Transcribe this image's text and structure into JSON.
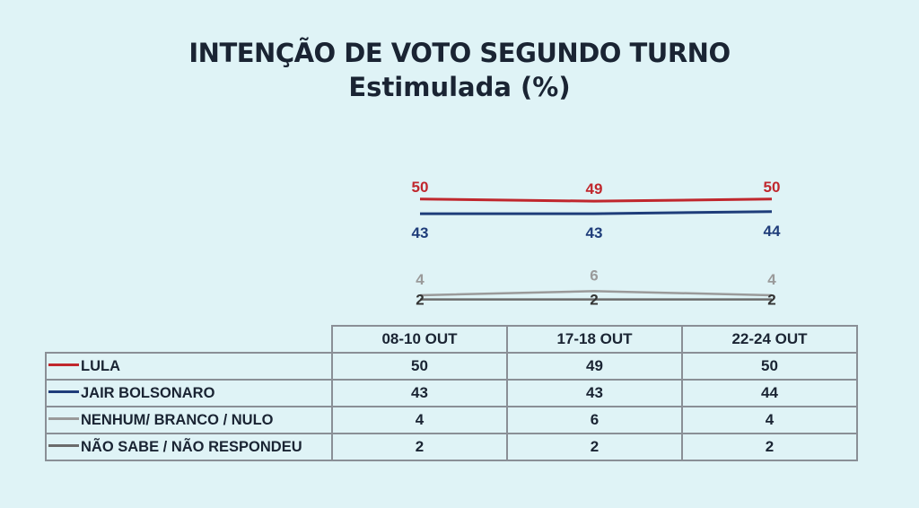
{
  "title": "INTENÇÃO DE VOTO SEGUNDO TURNO",
  "subtitle": "Estimulada (%)",
  "colors": {
    "lula": "#c0272d",
    "bolsonaro": "#1f3d7a",
    "nenhum": "#9a9a9a",
    "nao_sabe": "#6b6b6b"
  },
  "chart_data": {
    "type": "line",
    "title": "INTENÇÃO DE VOTO SEGUNDO TURNO",
    "subtitle": "Estimulada (%)",
    "categories": [
      "08-10 OUT",
      "17-18 OUT",
      "22-24 OUT"
    ],
    "series": [
      {
        "name": "LULA",
        "values": [
          50,
          49,
          50
        ],
        "color": "#c0272d"
      },
      {
        "name": "JAIR BOLSONARO",
        "values": [
          43,
          43,
          44
        ],
        "color": "#1f3d7a"
      },
      {
        "name": "NENHUM/ BRANCO / NULO",
        "values": [
          4,
          6,
          4
        ],
        "color": "#9a9a9a"
      },
      {
        "name": "NÃO SABE / NÃO RESPONDEU",
        "values": [
          2,
          2,
          2
        ],
        "color": "#6b6b6b"
      }
    ],
    "legend": "table-below",
    "grid": false
  }
}
